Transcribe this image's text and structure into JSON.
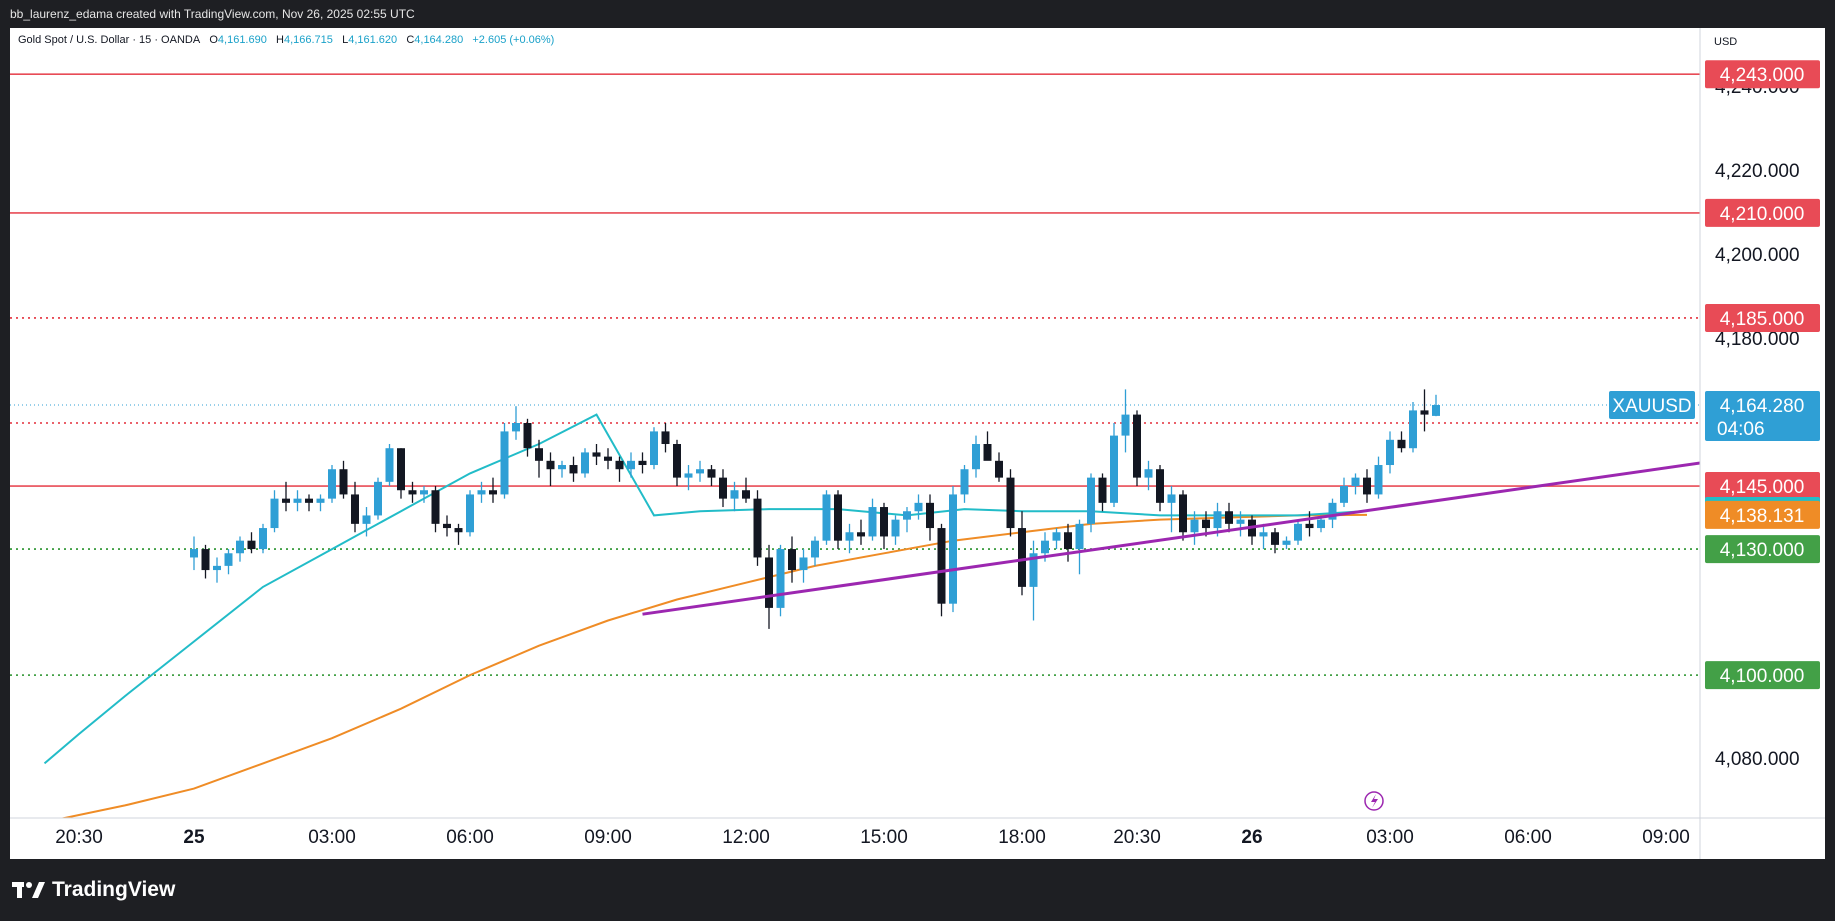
{
  "header": {
    "attribution": "bb_laurenz_edama created with TradingView.com, Nov 26, 2025 02:55 UTC"
  },
  "legend": {
    "symbol": "Gold Spot / U.S. Dollar · 15 · OANDA",
    "o_label": "O",
    "o_value": "4,161.690",
    "h_label": "H",
    "h_value": "4,166.715",
    "l_label": "L",
    "l_value": "4,161.620",
    "c_label": "C",
    "c_value": "4,164.280",
    "change": "+2.605 (+0.06%)"
  },
  "currency": "USD",
  "footer": {
    "brand": "TradingView",
    "brand_icon": "tradingview-logo-icon"
  },
  "colors": {
    "up": "#2f9fd5",
    "down": "#131722",
    "ma_fast": "#22bcc8",
    "ma_slow": "#ef8c26",
    "trendline": "#9c27b0",
    "resistance": "#e84b56",
    "support": "#43a047"
  },
  "chart_data": {
    "type": "candlestick",
    "symbol": "XAUUSD",
    "ylim": [
      4066,
      4254
    ],
    "y_ticks": [
      {
        "v": 4240,
        "label": "4,240.000"
      },
      {
        "v": 4220,
        "label": "4,220.000"
      },
      {
        "v": 4200,
        "label": "4,200.000"
      },
      {
        "v": 4180,
        "label": "4,180.000"
      },
      {
        "v": 4080,
        "label": "4,080.000"
      }
    ],
    "x_ticks": [
      {
        "label": "20:30",
        "i": -10,
        "bold": false
      },
      {
        "label": "25",
        "i": 0,
        "bold": true
      },
      {
        "label": "03:00",
        "i": 12,
        "bold": false
      },
      {
        "label": "06:00",
        "i": 24,
        "bold": false
      },
      {
        "label": "09:00",
        "i": 36,
        "bold": false
      },
      {
        "label": "12:00",
        "i": 48,
        "bold": false
      },
      {
        "label": "15:00",
        "i": 60,
        "bold": false
      },
      {
        "label": "18:00",
        "i": 72,
        "bold": false
      },
      {
        "label": "20:30",
        "i": 82,
        "bold": false
      },
      {
        "label": "26",
        "i": 92,
        "bold": true
      },
      {
        "label": "03:00",
        "i": 104,
        "bold": false
      },
      {
        "label": "06:00",
        "i": 116,
        "bold": false
      },
      {
        "label": "09:00",
        "i": 128,
        "bold": false
      }
    ],
    "levels": [
      {
        "value": 4243,
        "label": "4,243.000",
        "style": "solid",
        "color": "#e84b56"
      },
      {
        "value": 4210,
        "label": "4,210.000",
        "style": "solid",
        "color": "#e84b56"
      },
      {
        "value": 4185,
        "label": "4,185.000",
        "style": "dotted",
        "color": "#e84b56"
      },
      {
        "value": 4160,
        "label": "4,160.000",
        "style": "dotted",
        "color": "#e84b56"
      },
      {
        "value": 4145,
        "label": "4,145.000",
        "style": "solid",
        "color": "#e84b56"
      },
      {
        "value": 4130,
        "label": "4,130.000",
        "style": "dotted",
        "color": "#43a047"
      },
      {
        "value": 4100,
        "label": "4,100.000",
        "style": "dotted",
        "color": "#43a047"
      }
    ],
    "last_price": {
      "value": 4164.28,
      "label": "4,164.280",
      "countdown": "04:06",
      "symbol_tag": "XAUUSD"
    },
    "ma_fast_value": {
      "value": 4139.06,
      "label": "4,139.060"
    },
    "ma_slow_value": {
      "value": 4138.131,
      "label": "4,138.131"
    },
    "candles": [
      [
        4128,
        4133,
        4125,
        4130
      ],
      [
        4130,
        4131,
        4123,
        4125
      ],
      [
        4125,
        4128,
        4122,
        4126
      ],
      [
        4126,
        4130,
        4124,
        4129
      ],
      [
        4129,
        4133,
        4127,
        4132
      ],
      [
        4132,
        4134,
        4129,
        4130
      ],
      [
        4130,
        4136,
        4129,
        4135
      ],
      [
        4135,
        4144,
        4134,
        4142
      ],
      [
        4142,
        4146,
        4139,
        4141
      ],
      [
        4141,
        4144,
        4139,
        4142
      ],
      [
        4142,
        4143,
        4139,
        4141
      ],
      [
        4141,
        4143,
        4139,
        4142
      ],
      [
        4142,
        4150,
        4141,
        4149
      ],
      [
        4149,
        4151,
        4142,
        4143
      ],
      [
        4143,
        4146,
        4134,
        4136
      ],
      [
        4136,
        4140,
        4133,
        4138
      ],
      [
        4138,
        4147,
        4137,
        4146
      ],
      [
        4146,
        4155,
        4145,
        4154
      ],
      [
        4154,
        4154,
        4142,
        4144
      ],
      [
        4144,
        4146,
        4141,
        4143
      ],
      [
        4143,
        4145,
        4141,
        4144
      ],
      [
        4144,
        4145,
        4134,
        4136
      ],
      [
        4136,
        4138,
        4133,
        4135
      ],
      [
        4135,
        4136,
        4131,
        4134
      ],
      [
        4134,
        4144,
        4133,
        4143
      ],
      [
        4143,
        4146,
        4141,
        4144
      ],
      [
        4144,
        4147,
        4141,
        4143
      ],
      [
        4143,
        4160,
        4142,
        4158
      ],
      [
        4158,
        4164,
        4156,
        4160
      ],
      [
        4160,
        4161,
        4152,
        4154
      ],
      [
        4154,
        4156,
        4147,
        4151
      ],
      [
        4151,
        4153,
        4145,
        4149
      ],
      [
        4149,
        4151,
        4147,
        4150
      ],
      [
        4150,
        4152,
        4146,
        4148
      ],
      [
        4148,
        4154,
        4147,
        4153
      ],
      [
        4153,
        4155,
        4150,
        4152
      ],
      [
        4152,
        4154,
        4149,
        4151
      ],
      [
        4151,
        4152,
        4146,
        4149
      ],
      [
        4149,
        4153,
        4147,
        4151
      ],
      [
        4151,
        4153,
        4148,
        4150
      ],
      [
        4150,
        4159,
        4149,
        4158
      ],
      [
        4158,
        4160,
        4153,
        4155
      ],
      [
        4155,
        4156,
        4145,
        4147
      ],
      [
        4147,
        4150,
        4144,
        4148
      ],
      [
        4148,
        4151,
        4146,
        4149
      ],
      [
        4149,
        4150,
        4145,
        4147
      ],
      [
        4147,
        4149,
        4140,
        4142
      ],
      [
        4142,
        4146,
        4139,
        4144
      ],
      [
        4144,
        4147,
        4141,
        4142
      ],
      [
        4142,
        4144,
        4126,
        4128
      ],
      [
        4128,
        4131,
        4111,
        4116
      ],
      [
        4116,
        4131,
        4114,
        4130
      ],
      [
        4130,
        4133,
        4122,
        4125
      ],
      [
        4125,
        4130,
        4122,
        4128
      ],
      [
        4128,
        4133,
        4126,
        4132
      ],
      [
        4132,
        4144,
        4131,
        4143
      ],
      [
        4143,
        4144,
        4130,
        4132
      ],
      [
        4132,
        4136,
        4129,
        4134
      ],
      [
        4134,
        4137,
        4131,
        4133
      ],
      [
        4133,
        4142,
        4132,
        4140
      ],
      [
        4140,
        4141,
        4130,
        4133
      ],
      [
        4133,
        4138,
        4131,
        4137
      ],
      [
        4137,
        4140,
        4134,
        4139
      ],
      [
        4139,
        4143,
        4137,
        4141
      ],
      [
        4141,
        4143,
        4132,
        4135
      ],
      [
        4135,
        4136,
        4114,
        4117
      ],
      [
        4117,
        4145,
        4115,
        4143
      ],
      [
        4143,
        4150,
        4141,
        4149
      ],
      [
        4149,
        4157,
        4147,
        4155
      ],
      [
        4155,
        4158,
        4152,
        4151
      ],
      [
        4151,
        4153,
        4146,
        4147
      ],
      [
        4147,
        4149,
        4133,
        4135
      ],
      [
        4135,
        4139,
        4119,
        4121
      ],
      [
        4121,
        4132,
        4113,
        4129
      ],
      [
        4129,
        4134,
        4127,
        4132
      ],
      [
        4132,
        4135,
        4130,
        4134
      ],
      [
        4134,
        4136,
        4127,
        4130
      ],
      [
        4130,
        4137,
        4124,
        4136
      ],
      [
        4136,
        4148,
        4134,
        4147
      ],
      [
        4147,
        4148,
        4139,
        4141
      ],
      [
        4141,
        4160,
        4140,
        4157
      ],
      [
        4157,
        4168,
        4153,
        4162
      ],
      [
        4162,
        4163,
        4145,
        4147
      ],
      [
        4147,
        4151,
        4144,
        4149
      ],
      [
        4149,
        4150,
        4139,
        4141
      ],
      [
        4141,
        4145,
        4134,
        4143
      ],
      [
        4143,
        4144,
        4132,
        4134
      ],
      [
        4134,
        4139,
        4131,
        4137
      ],
      [
        4137,
        4139,
        4133,
        4135
      ],
      [
        4135,
        4141,
        4133,
        4139
      ],
      [
        4139,
        4141,
        4134,
        4136
      ],
      [
        4136,
        4139,
        4133,
        4137
      ],
      [
        4137,
        4138,
        4131,
        4133
      ],
      [
        4133,
        4136,
        4130,
        4134
      ],
      [
        4134,
        4135,
        4129,
        4131
      ],
      [
        4131,
        4133,
        4130,
        4132
      ],
      [
        4132,
        4137,
        4131,
        4136
      ],
      [
        4136,
        4139,
        4133,
        4135
      ],
      [
        4135,
        4138,
        4134,
        4137
      ],
      [
        4137,
        4142,
        4135,
        4141
      ],
      [
        4141,
        4147,
        4140,
        4145
      ],
      [
        4145,
        4148,
        4143,
        4147
      ],
      [
        4147,
        4149,
        4141,
        4143
      ],
      [
        4143,
        4152,
        4142,
        4150
      ],
      [
        4150,
        4158,
        4148,
        4156
      ],
      [
        4156,
        4158,
        4153,
        4154
      ],
      [
        4154,
        4165,
        4153,
        4163
      ],
      [
        4163,
        4168,
        4158,
        4162
      ],
      [
        4161.69,
        4166.715,
        4161.62,
        4164.28
      ]
    ],
    "ma_fast": [
      [
        -13,
        4079
      ],
      [
        -10,
        4086
      ],
      [
        -6,
        4095
      ],
      [
        0,
        4108
      ],
      [
        6,
        4121
      ],
      [
        12,
        4130
      ],
      [
        18,
        4139
      ],
      [
        24,
        4148
      ],
      [
        30,
        4155
      ],
      [
        35,
        4162
      ],
      [
        40,
        4138
      ],
      [
        44,
        4139
      ],
      [
        50,
        4139.5
      ],
      [
        56,
        4139.5
      ],
      [
        62,
        4138
      ],
      [
        67,
        4139.5
      ],
      [
        72,
        4139
      ],
      [
        78,
        4139
      ],
      [
        84,
        4138
      ],
      [
        90,
        4138
      ],
      [
        96,
        4138
      ],
      [
        102,
        4139.06
      ]
    ],
    "ma_slow": [
      [
        -13,
        4065
      ],
      [
        -6,
        4069
      ],
      [
        0,
        4073
      ],
      [
        6,
        4079
      ],
      [
        12,
        4085
      ],
      [
        18,
        4092
      ],
      [
        24,
        4100
      ],
      [
        30,
        4107
      ],
      [
        36,
        4113
      ],
      [
        42,
        4118
      ],
      [
        48,
        4122
      ],
      [
        54,
        4126
      ],
      [
        60,
        4129
      ],
      [
        66,
        4132
      ],
      [
        72,
        4134
      ],
      [
        78,
        4136
      ],
      [
        84,
        4137
      ],
      [
        90,
        4137.5
      ],
      [
        96,
        4138
      ],
      [
        102,
        4138.131
      ]
    ],
    "trendline": [
      [
        39,
        4114.5
      ],
      [
        131,
        4150.5
      ]
    ]
  }
}
